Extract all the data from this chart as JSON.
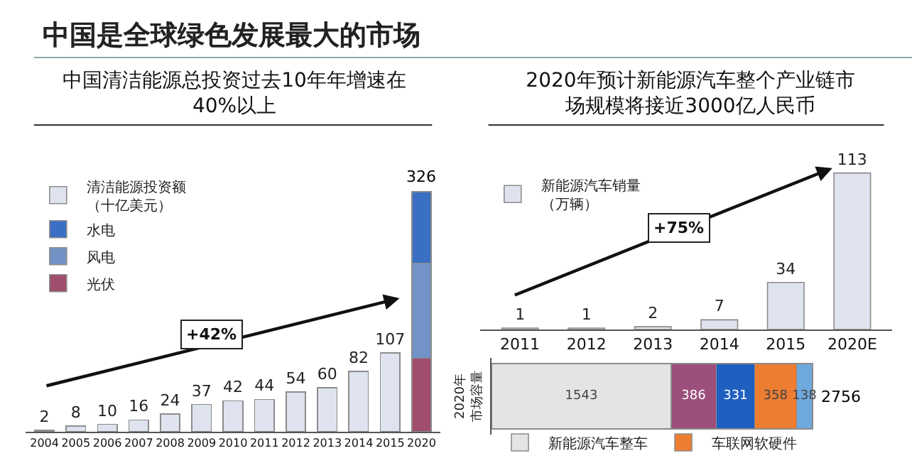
{
  "chart_data": [
    {
      "type": "bar",
      "title": "中国是全球绿色发展最大的市场",
      "subtitle": "中国清洁能源总投资过去10年年增速在40%以上",
      "annotations": [
        "+42%"
      ],
      "categories": [
        "2004",
        "2005",
        "2006",
        "2007",
        "2008",
        "2009",
        "2010",
        "2011",
        "2012",
        "2013",
        "2014",
        "2015",
        "2020"
      ],
      "stacked": true,
      "legend": "top left",
      "series": [
        {
          "name": "清洁能源投资额（十亿美元）",
          "color": "#dfe3ef",
          "values": [
            2,
            8,
            10,
            16,
            24,
            37,
            42,
            44,
            54,
            60,
            82,
            107,
            null
          ],
          "value_labels": [
            "2",
            "8",
            "10",
            "16",
            "24",
            "37",
            "42",
            "44",
            "54",
            "60",
            "82",
            "107",
            null
          ]
        },
        {
          "name": "光伏",
          "color": "#a04d6e",
          "values": [
            null,
            null,
            null,
            null,
            null,
            null,
            null,
            null,
            null,
            null,
            null,
            null,
            100
          ]
        },
        {
          "name": "风电",
          "color": "#7393c6",
          "values": [
            null,
            null,
            null,
            null,
            null,
            null,
            null,
            null,
            null,
            null,
            null,
            null,
            129
          ]
        },
        {
          "name": "水电",
          "color": "#3a6fc4",
          "values": [
            null,
            null,
            null,
            null,
            null,
            null,
            null,
            null,
            null,
            null,
            null,
            null,
            97
          ]
        }
      ],
      "totals": [
        null,
        null,
        null,
        null,
        null,
        null,
        null,
        null,
        null,
        null,
        null,
        null,
        "326"
      ]
    },
    {
      "type": "bar",
      "title": "2020年预计新能源汽车整个产业链市场规模将接近3000亿人民币",
      "annotations": [
        "+75%"
      ],
      "categories": [
        "2011",
        "2012",
        "2013",
        "2014",
        "2015",
        "2020E"
      ],
      "legend": "top left",
      "data_labels": true,
      "series": [
        {
          "name": "新能源汽车销量（万辆）",
          "color": "#dfe3ef",
          "values": [
            1,
            1,
            2,
            7,
            34,
            113
          ]
        }
      ]
    },
    {
      "type": "bar",
      "orientation": "horizontal",
      "stacked": true,
      "ylabel": "2020年市场容量",
      "categories": [
        null
      ],
      "data_labels": true,
      "legend": "bottom",
      "series": [
        {
          "name": "新能源汽车整车",
          "color": "#e4e4e4",
          "values": [
            1543
          ]
        },
        {
          "color": "#9b4f7a",
          "values": [
            386
          ]
        },
        {
          "color": "#1f5fbf",
          "values": [
            331
          ]
        },
        {
          "name": "车联网软硬件",
          "color": "#ed7d31",
          "values": [
            358
          ]
        },
        {
          "color": "#6fa8dc",
          "values": [
            138
          ]
        }
      ],
      "totals": [
        "2756"
      ]
    }
  ]
}
